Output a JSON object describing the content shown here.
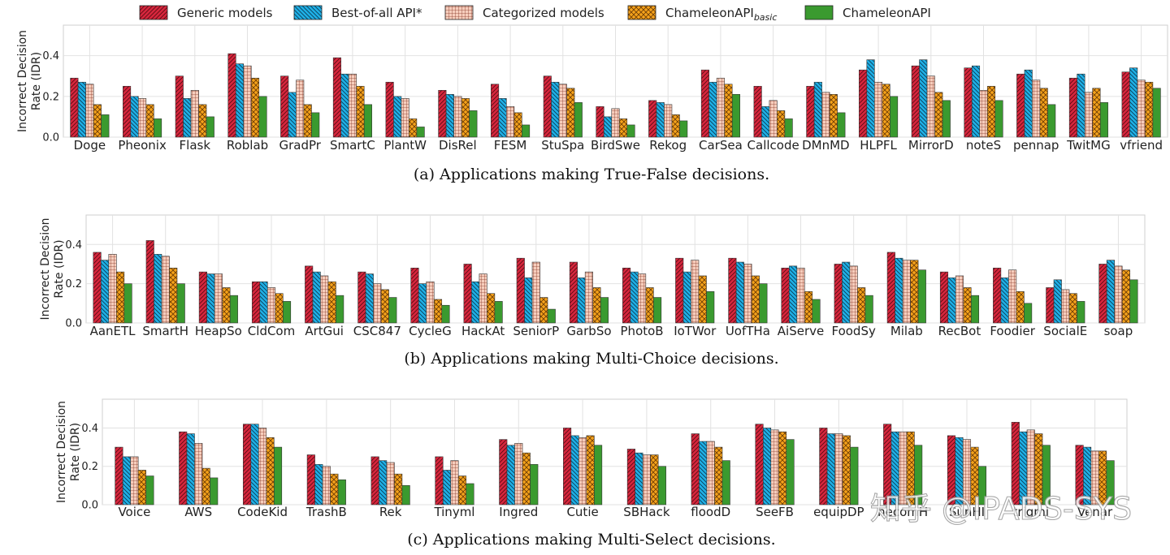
{
  "legend": [
    {
      "label": "Generic models",
      "color": "#d7263d",
      "pattern": "diag"
    },
    {
      "label": "Best-of-all API*",
      "color": "#1fb0e6",
      "pattern": "anti"
    },
    {
      "label": "Categorized models",
      "color": "#f3c2b0",
      "pattern": "grid"
    },
    {
      "label": "ChameleonAPI",
      "sub": "basic",
      "color": "#f5a21b",
      "pattern": "cross"
    },
    {
      "label": "ChameleonAPI",
      "color": "#3a9a2f",
      "pattern": "none"
    }
  ],
  "watermark": "知乎 @IPADS-SYS",
  "chart_data": [
    {
      "type": "bar",
      "caption": "(a) Applications making True-False decisions.",
      "ylabel": [
        "Incorrect Decision",
        "Rate (IDR)"
      ],
      "ylim": [
        0,
        0.55
      ],
      "yticks": [
        "0.0",
        "0.2",
        "0.4"
      ],
      "ytick_values": [
        0,
        0.2,
        0.4
      ],
      "grid": true,
      "categories": [
        "Doge",
        "Pheonix",
        "Flask",
        "Roblab",
        "GradPr",
        "SmartC",
        "PlantW",
        "DisRel",
        "FESM",
        "StuSpa",
        "BirdSwe",
        "Rekog",
        "CarSea",
        "Callcode",
        "DMnMD",
        "HLPFL",
        "MirrorD",
        "noteS",
        "pennap",
        "TwitMG",
        "vfriend"
      ],
      "series": [
        {
          "name": "Generic models",
          "values": [
            0.29,
            0.25,
            0.3,
            0.41,
            0.3,
            0.39,
            0.27,
            0.23,
            0.26,
            0.3,
            0.15,
            0.18,
            0.33,
            0.25,
            0.25,
            0.33,
            0.35,
            0.34,
            0.31,
            0.29,
            0.32
          ]
        },
        {
          "name": "Best-of-all API*",
          "values": [
            0.27,
            0.2,
            0.19,
            0.36,
            0.22,
            0.31,
            0.2,
            0.21,
            0.19,
            0.27,
            0.1,
            0.17,
            0.27,
            0.15,
            0.27,
            0.38,
            0.38,
            0.35,
            0.33,
            0.31,
            0.34
          ]
        },
        {
          "name": "Categorized models",
          "values": [
            0.26,
            0.19,
            0.23,
            0.35,
            0.28,
            0.31,
            0.19,
            0.2,
            0.15,
            0.26,
            0.14,
            0.16,
            0.29,
            0.18,
            0.22,
            0.27,
            0.3,
            0.23,
            0.28,
            0.22,
            0.28
          ]
        },
        {
          "name": "ChameleonAPI_basic",
          "values": [
            0.16,
            0.16,
            0.16,
            0.29,
            0.16,
            0.25,
            0.09,
            0.19,
            0.12,
            0.24,
            0.09,
            0.11,
            0.26,
            0.13,
            0.21,
            0.26,
            0.22,
            0.25,
            0.24,
            0.24,
            0.27
          ]
        },
        {
          "name": "ChameleonAPI",
          "values": [
            0.11,
            0.09,
            0.1,
            0.2,
            0.12,
            0.16,
            0.05,
            0.13,
            0.06,
            0.17,
            0.06,
            0.08,
            0.21,
            0.09,
            0.12,
            0.2,
            0.18,
            0.18,
            0.16,
            0.17,
            0.24
          ]
        }
      ]
    },
    {
      "type": "bar",
      "caption": "(b) Applications making Multi-Choice decisions.",
      "ylabel": [
        "Incorrect Decision",
        "Rate (IDR)"
      ],
      "ylim": [
        0,
        0.55
      ],
      "yticks": [
        "0.0",
        "0.2",
        "0.4"
      ],
      "ytick_values": [
        0,
        0.2,
        0.4
      ],
      "grid": true,
      "categories": [
        "AanETL",
        "SmartH",
        "HeapSo",
        "CldCom",
        "ArtGui",
        "CSC847",
        "CycleG",
        "HackAt",
        "SeniorP",
        "GarbSo",
        "PhotoB",
        "IoTWor",
        "UofTHa",
        "AiServe",
        "FoodSy",
        "Milab",
        "RecBot",
        "Foodier",
        "SocialE",
        "soap"
      ],
      "series": [
        {
          "name": "Generic models",
          "values": [
            0.36,
            0.42,
            0.26,
            0.21,
            0.29,
            0.26,
            0.28,
            0.3,
            0.33,
            0.31,
            0.28,
            0.33,
            0.33,
            0.28,
            0.3,
            0.36,
            0.26,
            0.28,
            0.18,
            0.3
          ]
        },
        {
          "name": "Best-of-all API*",
          "values": [
            0.32,
            0.35,
            0.25,
            0.21,
            0.26,
            0.25,
            0.2,
            0.21,
            0.23,
            0.23,
            0.26,
            0.26,
            0.31,
            0.29,
            0.31,
            0.33,
            0.23,
            0.23,
            0.22,
            0.32
          ]
        },
        {
          "name": "Categorized models",
          "values": [
            0.35,
            0.34,
            0.25,
            0.18,
            0.24,
            0.2,
            0.21,
            0.25,
            0.31,
            0.26,
            0.25,
            0.32,
            0.3,
            0.28,
            0.29,
            0.32,
            0.24,
            0.27,
            0.17,
            0.29
          ]
        },
        {
          "name": "ChameleonAPI_basic",
          "values": [
            0.26,
            0.28,
            0.18,
            0.15,
            0.21,
            0.17,
            0.12,
            0.15,
            0.13,
            0.18,
            0.18,
            0.24,
            0.24,
            0.16,
            0.18,
            0.32,
            0.18,
            0.16,
            0.15,
            0.27
          ]
        },
        {
          "name": "ChameleonAPI",
          "values": [
            0.2,
            0.2,
            0.14,
            0.11,
            0.14,
            0.13,
            0.09,
            0.11,
            0.07,
            0.13,
            0.13,
            0.16,
            0.2,
            0.12,
            0.14,
            0.27,
            0.14,
            0.1,
            0.11,
            0.22
          ]
        }
      ]
    },
    {
      "type": "bar",
      "caption": "(c) Applications making Multi-Select decisions.",
      "ylabel": [
        "Incorrect Decision",
        "Rate (IDR)"
      ],
      "ylim": [
        0,
        0.55
      ],
      "yticks": [
        "0.0",
        "0.2",
        "0.4"
      ],
      "ytick_values": [
        0,
        0.2,
        0.4
      ],
      "grid": true,
      "categories": [
        "Voice",
        "AWS",
        "CodeKid",
        "TrashB",
        "Rek",
        "Tinyml",
        "Ingred",
        "Cutie",
        "SBHack",
        "floodD",
        "SeeFB",
        "equipDP",
        "hecomH",
        "SunHI",
        "trigmi",
        "Venar"
      ],
      "series": [
        {
          "name": "Generic models",
          "values": [
            0.3,
            0.38,
            0.42,
            0.26,
            0.25,
            0.25,
            0.34,
            0.4,
            0.29,
            0.37,
            0.42,
            0.4,
            0.42,
            0.36,
            0.43,
            0.31
          ]
        },
        {
          "name": "Best-of-all API*",
          "values": [
            0.25,
            0.37,
            0.42,
            0.21,
            0.23,
            0.18,
            0.31,
            0.36,
            0.27,
            0.33,
            0.4,
            0.37,
            0.38,
            0.35,
            0.38,
            0.3
          ]
        },
        {
          "name": "Categorized models",
          "values": [
            0.25,
            0.32,
            0.4,
            0.2,
            0.22,
            0.23,
            0.32,
            0.35,
            0.26,
            0.33,
            0.39,
            0.37,
            0.38,
            0.34,
            0.39,
            0.28
          ]
        },
        {
          "name": "ChameleonAPI_basic",
          "values": [
            0.18,
            0.19,
            0.35,
            0.16,
            0.16,
            0.15,
            0.27,
            0.36,
            0.26,
            0.3,
            0.38,
            0.36,
            0.38,
            0.3,
            0.37,
            0.28
          ]
        },
        {
          "name": "ChameleonAPI",
          "values": [
            0.15,
            0.14,
            0.3,
            0.13,
            0.1,
            0.11,
            0.21,
            0.31,
            0.2,
            0.23,
            0.34,
            0.3,
            0.31,
            0.2,
            0.31,
            0.23
          ]
        }
      ]
    }
  ]
}
